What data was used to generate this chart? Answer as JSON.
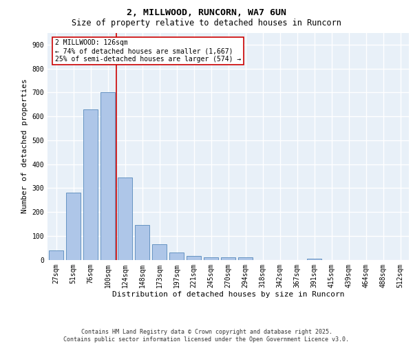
{
  "title1": "2, MILLWOOD, RUNCORN, WA7 6UN",
  "title2": "Size of property relative to detached houses in Runcorn",
  "xlabel": "Distribution of detached houses by size in Runcorn",
  "ylabel": "Number of detached properties",
  "categories": [
    "27sqm",
    "51sqm",
    "76sqm",
    "100sqm",
    "124sqm",
    "148sqm",
    "173sqm",
    "197sqm",
    "221sqm",
    "245sqm",
    "270sqm",
    "294sqm",
    "318sqm",
    "342sqm",
    "367sqm",
    "391sqm",
    "415sqm",
    "439sqm",
    "464sqm",
    "488sqm",
    "512sqm"
  ],
  "values": [
    40,
    280,
    630,
    700,
    345,
    145,
    65,
    30,
    15,
    10,
    10,
    10,
    0,
    0,
    0,
    5,
    0,
    0,
    0,
    0,
    0
  ],
  "bar_color": "#aec6e8",
  "bar_edge_color": "#5588bb",
  "highlight_line_color": "#cc0000",
  "annotation_text": "2 MILLWOOD: 126sqm\n← 74% of detached houses are smaller (1,667)\n25% of semi-detached houses are larger (574) →",
  "annotation_box_color": "#cc0000",
  "ylim": [
    0,
    950
  ],
  "yticks": [
    0,
    100,
    200,
    300,
    400,
    500,
    600,
    700,
    800,
    900
  ],
  "background_color": "#e8f0f8",
  "grid_color": "#ffffff",
  "footer_text": "Contains HM Land Registry data © Crown copyright and database right 2025.\nContains public sector information licensed under the Open Government Licence v3.0.",
  "title_fontsize": 9.5,
  "subtitle_fontsize": 8.5,
  "axis_label_fontsize": 8,
  "tick_fontsize": 7,
  "annotation_fontsize": 7,
  "footer_fontsize": 6
}
